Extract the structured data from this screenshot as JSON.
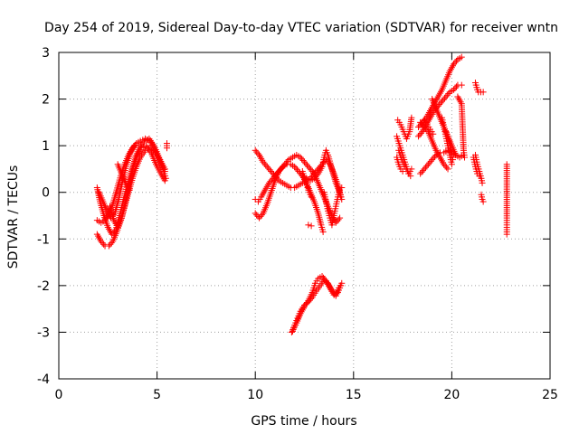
{
  "chart_data": {
    "type": "scatter",
    "title": "Day 254 of 2019, Sidereal Day-to-day VTEC variation (SDTVAR) for receiver wntn",
    "xlabel": "GPS time / hours",
    "ylabel": "SDTVAR / TECUs",
    "xlim": [
      0,
      25
    ],
    "ylim": [
      -4,
      3
    ],
    "xticks": [
      0,
      5,
      10,
      15,
      20,
      25
    ],
    "yticks": [
      -4,
      -3,
      -2,
      -1,
      0,
      1,
      2,
      3
    ],
    "grid": true,
    "marker": "+",
    "color": "#ff0000",
    "tracks": [
      [
        [
          1.95,
          0.1
        ],
        [
          2.1,
          -0.2
        ],
        [
          2.3,
          -0.5
        ],
        [
          2.5,
          -0.75
        ],
        [
          2.7,
          -0.9
        ],
        [
          2.9,
          -0.8
        ],
        [
          3.1,
          -0.5
        ],
        [
          3.3,
          -0.15
        ],
        [
          3.5,
          0.15
        ],
        [
          3.7,
          0.45
        ],
        [
          3.9,
          0.75
        ],
        [
          4.1,
          0.95
        ],
        [
          4.35,
          1.1
        ],
        [
          4.6,
          1.15
        ],
        [
          4.85,
          1.0
        ],
        [
          5.1,
          0.75
        ],
        [
          5.3,
          0.5
        ],
        [
          5.45,
          0.3
        ]
      ],
      [
        [
          1.95,
          -0.9
        ],
        [
          2.15,
          -1.05
        ],
        [
          2.35,
          -1.15
        ],
        [
          2.55,
          -1.15
        ],
        [
          2.75,
          -1.05
        ],
        [
          2.95,
          -0.85
        ],
        [
          3.15,
          -0.6
        ],
        [
          3.35,
          -0.3
        ],
        [
          3.55,
          0.0
        ],
        [
          3.75,
          0.3
        ],
        [
          3.95,
          0.55
        ],
        [
          4.15,
          0.75
        ],
        [
          4.4,
          0.9
        ],
        [
          4.65,
          0.95
        ],
        [
          4.9,
          0.85
        ],
        [
          5.15,
          0.7
        ],
        [
          5.4,
          0.5
        ]
      ],
      [
        [
          1.95,
          -0.6
        ],
        [
          2.15,
          -0.65
        ],
        [
          2.35,
          -0.6
        ],
        [
          2.55,
          -0.45
        ],
        [
          2.75,
          -0.25
        ],
        [
          2.95,
          0.05
        ],
        [
          3.15,
          0.35
        ],
        [
          3.35,
          0.6
        ],
        [
          3.55,
          0.8
        ],
        [
          3.75,
          0.95
        ],
        [
          3.95,
          1.05
        ],
        [
          4.15,
          1.1
        ],
        [
          4.4,
          1.15
        ],
        [
          4.65,
          1.1
        ],
        [
          4.9,
          0.9
        ],
        [
          5.15,
          0.65
        ],
        [
          5.4,
          0.45
        ]
      ],
      [
        [
          2.05,
          0.0
        ],
        [
          2.25,
          -0.2
        ],
        [
          2.45,
          -0.4
        ],
        [
          2.65,
          -0.55
        ],
        [
          2.85,
          -0.45
        ],
        [
          3.05,
          -0.15
        ],
        [
          3.25,
          0.25
        ],
        [
          3.45,
          0.6
        ],
        [
          3.65,
          0.85
        ],
        [
          3.85,
          1.0
        ]
      ],
      [
        [
          2.6,
          -0.3
        ],
        [
          2.8,
          -0.6
        ],
        [
          3.0,
          -0.75
        ],
        [
          3.2,
          -0.55
        ],
        [
          3.4,
          -0.2
        ],
        [
          3.6,
          0.2
        ],
        [
          3.8,
          0.55
        ],
        [
          4.0,
          0.8
        ],
        [
          4.2,
          0.95
        ],
        [
          4.45,
          1.0
        ],
        [
          4.7,
          0.85
        ],
        [
          4.95,
          0.6
        ],
        [
          5.2,
          0.4
        ],
        [
          5.4,
          0.25
        ]
      ],
      [
        [
          3.0,
          0.6
        ],
        [
          3.2,
          0.4
        ],
        [
          3.4,
          0.2
        ],
        [
          3.6,
          0.05
        ]
      ],
      [
        [
          5.5,
          1.05
        ],
        [
          5.5,
          0.95
        ]
      ],
      [
        [
          10.0,
          0.9
        ],
        [
          10.2,
          0.8
        ],
        [
          10.4,
          0.65
        ],
        [
          10.6,
          0.55
        ],
        [
          10.8,
          0.45
        ],
        [
          11.0,
          0.35
        ],
        [
          11.2,
          0.25
        ],
        [
          11.4,
          0.2
        ],
        [
          11.6,
          0.15
        ],
        [
          11.8,
          0.1
        ],
        [
          12.0,
          0.1
        ],
        [
          12.2,
          0.15
        ],
        [
          12.4,
          0.2
        ],
        [
          12.6,
          0.25
        ],
        [
          12.8,
          0.3
        ],
        [
          13.0,
          0.4
        ],
        [
          13.2,
          0.5
        ],
        [
          13.4,
          0.6
        ],
        [
          13.6,
          0.7
        ],
        [
          13.8,
          0.6
        ],
        [
          14.0,
          0.4
        ],
        [
          14.2,
          0.15
        ],
        [
          14.35,
          -0.1
        ]
      ],
      [
        [
          10.0,
          -0.15
        ],
        [
          10.15,
          -0.2
        ],
        [
          10.3,
          -0.1
        ],
        [
          10.5,
          0.05
        ],
        [
          10.7,
          0.2
        ],
        [
          10.9,
          0.3
        ],
        [
          11.1,
          0.4
        ],
        [
          11.3,
          0.5
        ],
        [
          11.5,
          0.6
        ],
        [
          11.7,
          0.7
        ],
        [
          11.9,
          0.75
        ],
        [
          12.1,
          0.8
        ],
        [
          12.3,
          0.75
        ],
        [
          12.5,
          0.65
        ],
        [
          12.7,
          0.55
        ],
        [
          12.9,
          0.45
        ],
        [
          13.1,
          0.3
        ],
        [
          13.3,
          0.1
        ],
        [
          13.5,
          -0.1
        ],
        [
          13.7,
          -0.3
        ],
        [
          13.9,
          -0.5
        ],
        [
          14.1,
          -0.65
        ],
        [
          14.3,
          -0.55
        ]
      ],
      [
        [
          10.0,
          -0.45
        ],
        [
          10.2,
          -0.55
        ],
        [
          10.4,
          -0.45
        ],
        [
          10.6,
          -0.25
        ],
        [
          10.8,
          0.0
        ],
        [
          11.0,
          0.25
        ],
        [
          11.2,
          0.45
        ],
        [
          11.4,
          0.55
        ],
        [
          11.6,
          0.6
        ],
        [
          11.8,
          0.6
        ],
        [
          12.0,
          0.55
        ],
        [
          12.2,
          0.45
        ],
        [
          12.4,
          0.35
        ],
        [
          12.6,
          0.2
        ],
        [
          12.8,
          0.0
        ],
        [
          13.0,
          -0.2
        ],
        [
          13.2,
          -0.45
        ],
        [
          13.35,
          -0.7
        ],
        [
          13.45,
          -0.85
        ]
      ],
      [
        [
          12.4,
          0.35
        ],
        [
          12.6,
          0.3
        ],
        [
          12.8,
          0.25
        ],
        [
          13.0,
          0.3
        ],
        [
          13.2,
          0.4
        ],
        [
          13.4,
          0.55
        ],
        [
          13.5,
          0.75
        ],
        [
          13.6,
          0.9
        ],
        [
          13.7,
          0.8
        ],
        [
          13.9,
          0.5
        ],
        [
          14.1,
          0.2
        ],
        [
          14.3,
          0.0
        ],
        [
          14.4,
          -0.15
        ]
      ],
      [
        [
          13.5,
          0.0
        ],
        [
          13.6,
          -0.2
        ],
        [
          13.7,
          -0.4
        ],
        [
          13.8,
          -0.55
        ],
        [
          13.9,
          -0.7
        ],
        [
          14.0,
          -0.5
        ],
        [
          14.1,
          -0.3
        ],
        [
          14.2,
          -0.1
        ],
        [
          14.3,
          0.05
        ],
        [
          14.4,
          0.1
        ]
      ],
      [
        [
          12.4,
          0.45
        ],
        [
          12.55,
          0.25
        ],
        [
          12.7,
          0.05
        ],
        [
          12.85,
          -0.1
        ]
      ],
      [
        [
          12.7,
          -0.7
        ],
        [
          12.85,
          -0.72
        ]
      ],
      [
        [
          11.85,
          -3.0
        ],
        [
          12.0,
          -2.85
        ],
        [
          12.15,
          -2.7
        ],
        [
          12.3,
          -2.55
        ],
        [
          12.5,
          -2.42
        ],
        [
          12.7,
          -2.35
        ],
        [
          12.9,
          -2.25
        ],
        [
          13.1,
          -2.12
        ],
        [
          13.3,
          -2.0
        ],
        [
          13.5,
          -1.88
        ],
        [
          13.7,
          -1.95
        ],
        [
          13.9,
          -2.1
        ],
        [
          14.1,
          -2.22
        ],
        [
          14.25,
          -2.05
        ],
        [
          14.4,
          -1.95
        ]
      ],
      [
        [
          11.9,
          -2.98
        ],
        [
          12.1,
          -2.8
        ],
        [
          12.3,
          -2.6
        ],
        [
          12.5,
          -2.45
        ],
        [
          12.7,
          -2.32
        ],
        [
          12.9,
          -2.15
        ],
        [
          13.05,
          -1.95
        ],
        [
          13.2,
          -1.85
        ],
        [
          13.4,
          -1.8
        ],
        [
          13.6,
          -1.9
        ],
        [
          13.8,
          -2.05
        ],
        [
          14.0,
          -2.2
        ],
        [
          14.2,
          -2.15
        ],
        [
          14.35,
          -2.0
        ]
      ],
      [
        [
          17.2,
          1.2
        ],
        [
          17.35,
          1.0
        ],
        [
          17.5,
          0.8
        ],
        [
          17.65,
          0.6
        ],
        [
          17.8,
          0.4
        ],
        [
          17.95,
          0.5
        ]
      ],
      [
        [
          17.25,
          1.55
        ],
        [
          17.4,
          1.45
        ],
        [
          17.55,
          1.3
        ],
        [
          17.7,
          1.15
        ],
        [
          17.85,
          1.3
        ],
        [
          17.95,
          1.6
        ]
      ],
      [
        [
          17.3,
          0.9
        ],
        [
          17.45,
          0.7
        ],
        [
          17.6,
          0.55
        ],
        [
          17.75,
          0.45
        ],
        [
          17.9,
          0.35
        ]
      ],
      [
        [
          17.2,
          0.75
        ],
        [
          17.3,
          0.6
        ],
        [
          17.4,
          0.5
        ],
        [
          17.5,
          0.45
        ]
      ],
      [
        [
          18.3,
          1.4
        ],
        [
          18.5,
          1.5
        ],
        [
          18.7,
          1.6
        ],
        [
          18.9,
          1.75
        ],
        [
          19.1,
          1.9
        ],
        [
          19.3,
          2.05
        ],
        [
          19.5,
          2.2
        ],
        [
          19.7,
          2.4
        ],
        [
          19.9,
          2.6
        ],
        [
          20.1,
          2.75
        ],
        [
          20.3,
          2.85
        ],
        [
          20.5,
          2.9
        ]
      ],
      [
        [
          18.3,
          1.2
        ],
        [
          18.5,
          1.3
        ],
        [
          18.7,
          1.45
        ],
        [
          18.9,
          1.6
        ],
        [
          19.1,
          1.75
        ],
        [
          19.3,
          1.85
        ],
        [
          19.5,
          1.95
        ],
        [
          19.7,
          2.05
        ],
        [
          19.9,
          2.15
        ],
        [
          20.1,
          2.2
        ],
        [
          20.3,
          2.3
        ],
        [
          20.5,
          2.3
        ]
      ],
      [
        [
          18.4,
          0.4
        ],
        [
          18.6,
          0.5
        ],
        [
          18.8,
          0.6
        ],
        [
          19.0,
          0.7
        ],
        [
          19.2,
          0.8
        ],
        [
          19.4,
          0.85
        ],
        [
          19.6,
          0.85
        ],
        [
          19.8,
          0.9
        ],
        [
          20.0,
          0.85
        ],
        [
          20.2,
          0.8
        ],
        [
          20.4,
          0.75
        ],
        [
          20.6,
          0.8
        ]
      ],
      [
        [
          18.4,
          1.5
        ],
        [
          18.6,
          1.4
        ],
        [
          18.8,
          1.3
        ],
        [
          19.0,
          1.1
        ],
        [
          19.2,
          0.9
        ],
        [
          19.4,
          0.75
        ],
        [
          19.6,
          0.6
        ],
        [
          19.8,
          0.5
        ]
      ],
      [
        [
          18.6,
          1.55
        ],
        [
          18.75,
          1.45
        ],
        [
          18.9,
          1.35
        ],
        [
          19.05,
          1.25
        ]
      ],
      [
        [
          19.0,
          2.0
        ],
        [
          19.2,
          1.8
        ],
        [
          19.4,
          1.6
        ],
        [
          19.6,
          1.4
        ],
        [
          19.8,
          1.2
        ],
        [
          20.0,
          1.0
        ],
        [
          20.2,
          0.8
        ]
      ],
      [
        [
          19.5,
          1.6
        ],
        [
          19.6,
          1.4
        ],
        [
          19.7,
          1.2
        ],
        [
          19.8,
          1.0
        ],
        [
          19.9,
          0.8
        ],
        [
          20.0,
          0.6
        ]
      ],
      [
        [
          19.7,
          1.3
        ],
        [
          19.85,
          1.1
        ],
        [
          19.95,
          0.9
        ],
        [
          20.05,
          0.7
        ]
      ],
      [
        [
          20.3,
          2.05
        ],
        [
          20.5,
          1.9
        ],
        [
          20.6,
          0.9
        ],
        [
          20.65,
          0.75
        ]
      ],
      [
        [
          21.2,
          2.35
        ],
        [
          21.3,
          2.2
        ],
        [
          21.35,
          2.15
        ],
        [
          21.6,
          2.15
        ]
      ],
      [
        [
          21.1,
          0.75
        ],
        [
          21.2,
          0.55
        ],
        [
          21.3,
          0.4
        ],
        [
          21.4,
          0.35
        ]
      ],
      [
        [
          21.2,
          0.8
        ],
        [
          21.3,
          0.6
        ],
        [
          21.4,
          0.45
        ],
        [
          21.5,
          0.3
        ],
        [
          21.55,
          0.2
        ]
      ],
      [
        [
          21.5,
          -0.05
        ],
        [
          21.55,
          -0.15
        ],
        [
          21.6,
          -0.2
        ]
      ],
      [
        [
          22.8,
          0.6
        ],
        [
          22.8,
          -0.55
        ],
        [
          22.8,
          -0.65
        ],
        [
          22.8,
          -0.85
        ],
        [
          22.8,
          -0.9
        ]
      ]
    ]
  }
}
